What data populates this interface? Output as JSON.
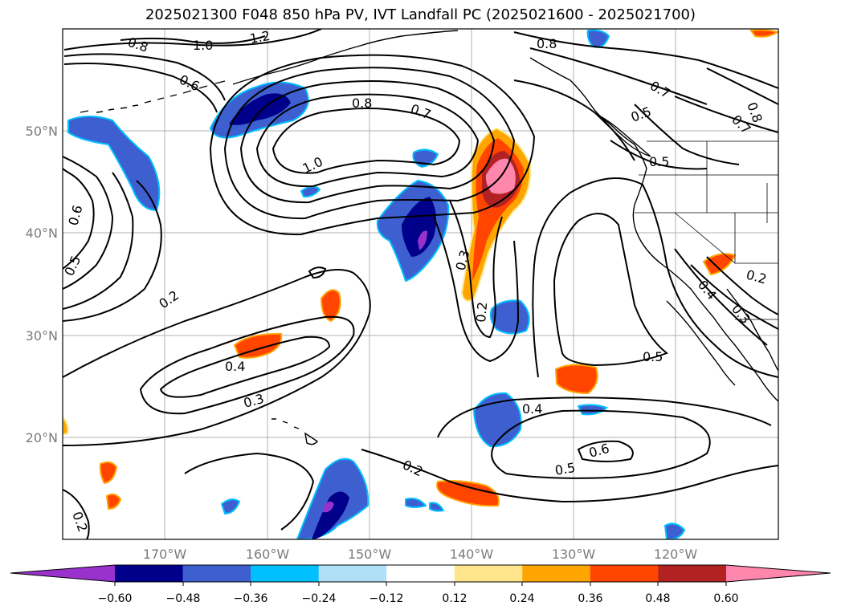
{
  "title": "2025021300 F048 850 hPa PV, IVT Landfall PC (2025021600 - 2025021700)",
  "lat_ticks": [
    "50°N",
    "40°N",
    "30°N",
    "20°N"
  ],
  "lon_ticks": [
    "170°W",
    "160°W",
    "150°W",
    "140°W",
    "130°W",
    "120°W"
  ],
  "contour_labels": [
    "0.8",
    "1.0",
    "1.2",
    "0.6",
    "0.8",
    "0.7",
    "1.0",
    "0.6",
    "0.5",
    "0.2",
    "0.4",
    "0.3",
    "0.3",
    "0.2",
    "0.4",
    "0.5",
    "0.6",
    "0.5",
    "0.2",
    "0.2",
    "0.8",
    "0.7",
    "0.5",
    "0.5",
    "0.8",
    "0.7",
    "0.2",
    "0.4",
    "0.3"
  ],
  "colorbar": {
    "ticks": [
      "−0.60",
      "−0.48",
      "−0.36",
      "−0.24",
      "−0.12",
      "0.12",
      "0.24",
      "0.36",
      "0.48",
      "0.60"
    ],
    "colors": [
      "#9932cc",
      "#00008b",
      "#3d5fcf",
      "#00bfff",
      "#b0e0f8",
      "#ffffff",
      "#ffe68c",
      "#ffa500",
      "#ff4500",
      "#b22222",
      "#ff86ac"
    ]
  }
}
